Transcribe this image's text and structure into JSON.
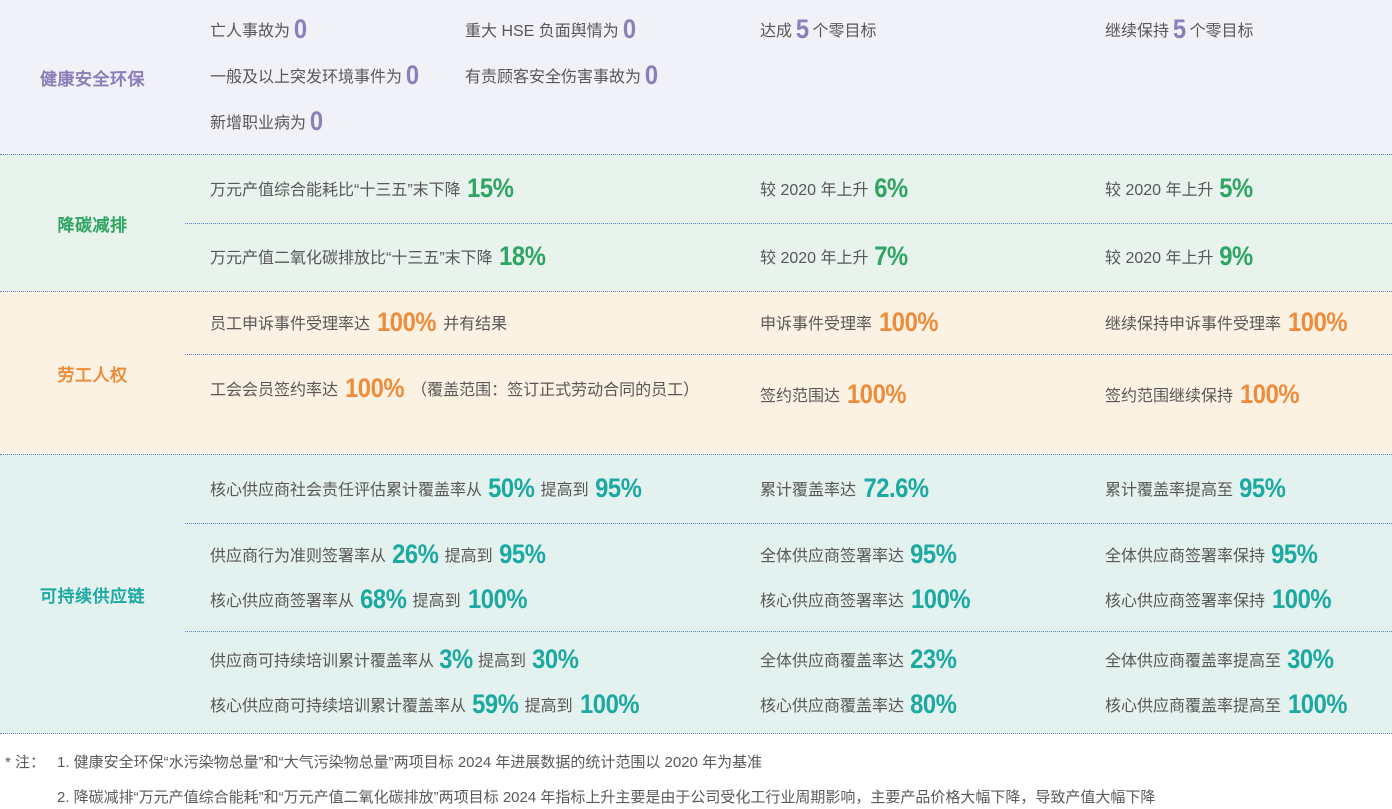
{
  "colors": {
    "divider_blue": "#5C86C0",
    "body_text": "#595757",
    "hse_accent": "#8C7EB8",
    "hse_bg": "#F1F1F8",
    "carbon_accent": "#2FA463",
    "carbon_bg": "#E7F3EC",
    "labor_accent": "#EF8C3B",
    "labor_bg": "#FCF2E3",
    "supply_accent": "#1CA9A1",
    "supply_bg": "#E3F1EF"
  },
  "sections": [
    {
      "label": "健康安全环保",
      "theme": {
        "bg": "#F1F1F8",
        "accent": "#8C7EB8"
      },
      "rows": [
        {
          "goal_a": [
            [
              {
                "t": "亡人事故为"
              },
              {
                "b": "0"
              }
            ],
            [
              {
                "t": "一般及以上突发环境事件为"
              },
              {
                "b": "0"
              }
            ],
            [
              {
                "t": "新增职业病为"
              },
              {
                "b": "0"
              }
            ]
          ],
          "goal_b": [
            [
              {
                "t": "重大 HSE 负面舆情为"
              },
              {
                "b": "0"
              }
            ],
            [
              {
                "t": "有责顾客安全伤害事故为"
              },
              {
                "b": "0"
              }
            ]
          ],
          "progress": [
            [
              {
                "t": "达成"
              },
              {
                "b": "5"
              },
              {
                "t": "个零目标"
              }
            ]
          ],
          "future": [
            [
              {
                "t": "继续保持"
              },
              {
                "b": "5"
              },
              {
                "t": "个零目标"
              }
            ]
          ]
        }
      ]
    },
    {
      "label": "降碳减排",
      "theme": {
        "bg": "#E7F3EC",
        "accent": "#2FA463"
      },
      "rows": [
        {
          "goal": [
            [
              {
                "t": "万元产值综合能耗比“十三五”末下降"
              },
              {
                "b": "15%"
              }
            ]
          ],
          "progress": [
            [
              {
                "t": "较 2020 年上升"
              },
              {
                "b": "6%"
              }
            ]
          ],
          "future": [
            [
              {
                "t": "较 2020 年上升"
              },
              {
                "b": "5%"
              }
            ]
          ]
        },
        {
          "goal": [
            [
              {
                "t": "万元产值二氧化碳排放比“十三五”末下降"
              },
              {
                "b": "18%"
              }
            ]
          ],
          "progress": [
            [
              {
                "t": "较 2020 年上升"
              },
              {
                "b": "7%"
              }
            ]
          ],
          "future": [
            [
              {
                "t": "较 2020 年上升"
              },
              {
                "b": "9%"
              }
            ]
          ]
        }
      ]
    },
    {
      "label": "劳工人权",
      "theme": {
        "bg": "#FCF2E3",
        "accent": "#EF8C3B"
      },
      "rows": [
        {
          "goal": [
            [
              {
                "t": "员工申诉事件受理率达"
              },
              {
                "b": "100%"
              },
              {
                "t": "并有结果"
              }
            ]
          ],
          "progress": [
            [
              {
                "t": "申诉事件受理率"
              },
              {
                "b": "100%"
              }
            ]
          ],
          "future": [
            [
              {
                "t": "继续保持申诉事件受理率"
              },
              {
                "b": "100%"
              }
            ]
          ]
        },
        {
          "goal": [
            [
              {
                "t": "工会会员签约率达"
              },
              {
                "b": "100%"
              },
              {
                "t": "（覆盖范围：签订正式劳动合同的员工）"
              }
            ]
          ],
          "progress": [
            [
              {
                "t": "签约范围达"
              },
              {
                "b": "100%"
              }
            ]
          ],
          "future": [
            [
              {
                "t": "签约范围继续保持"
              },
              {
                "b": "100%"
              }
            ]
          ]
        }
      ]
    },
    {
      "label": "可持续供应链",
      "theme": {
        "bg": "#E3F1EF",
        "accent": "#1CA9A1"
      },
      "rows": [
        {
          "goal": [
            [
              {
                "t": "核心供应商社会责任评估累计覆盖率从"
              },
              {
                "b": "50%"
              },
              {
                "t": "提高到"
              },
              {
                "b": "95%"
              }
            ]
          ],
          "progress": [
            [
              {
                "t": "累计覆盖率达"
              },
              {
                "b": "72.6%"
              }
            ]
          ],
          "future": [
            [
              {
                "t": "累计覆盖率提高至"
              },
              {
                "b": "95%"
              }
            ]
          ]
        },
        {
          "goal": [
            [
              {
                "t": "供应商行为准则签署率从"
              },
              {
                "b": "26%"
              },
              {
                "t": "提高到"
              },
              {
                "b": "95%"
              }
            ],
            [
              {
                "t": "核心供应商签署率从"
              },
              {
                "b": "68%"
              },
              {
                "t": "提高到"
              },
              {
                "b": "100%"
              }
            ]
          ],
          "progress": [
            [
              {
                "t": "全体供应商签署率达"
              },
              {
                "b": "95%"
              }
            ],
            [
              {
                "t": "核心供应商签署率达"
              },
              {
                "b": "100%"
              }
            ]
          ],
          "future": [
            [
              {
                "t": "全体供应商签署率保持"
              },
              {
                "b": "95%"
              }
            ],
            [
              {
                "t": "核心供应商签署率保持"
              },
              {
                "b": "100%"
              }
            ]
          ]
        },
        {
          "goal": [
            [
              {
                "t": "供应商可持续培训累计覆盖率从"
              },
              {
                "b": "3%"
              },
              {
                "t": "提高到"
              },
              {
                "b": "30%"
              }
            ],
            [
              {
                "t": "核心供应商可持续培训累计覆盖率从"
              },
              {
                "b": "59%"
              },
              {
                "t": "提高到"
              },
              {
                "b": "100%"
              }
            ]
          ],
          "progress": [
            [
              {
                "t": "全体供应商覆盖率达"
              },
              {
                "b": "23%"
              }
            ],
            [
              {
                "t": "核心供应商覆盖率达"
              },
              {
                "b": "80%"
              }
            ]
          ],
          "future": [
            [
              {
                "t": "全体供应商覆盖率提高至"
              },
              {
                "b": "30%"
              }
            ],
            [
              {
                "t": "核心供应商覆盖率提高至"
              },
              {
                "b": "100%"
              }
            ]
          ]
        }
      ]
    }
  ],
  "footnotes": {
    "prefix": "* 注：",
    "items": [
      "1. 健康安全环保“水污染物总量”和“大气污染物总量”两项目标 2024 年进展数据的统计范围以 2020 年为基准",
      "2. 降碳减排“万元产值综合能耗”和“万元产值二氧化碳排放”两项目标 2024 年指标上升主要是由于公司受化工行业周期影响，主要产品价格大幅下降，导致产值大幅下降"
    ]
  }
}
